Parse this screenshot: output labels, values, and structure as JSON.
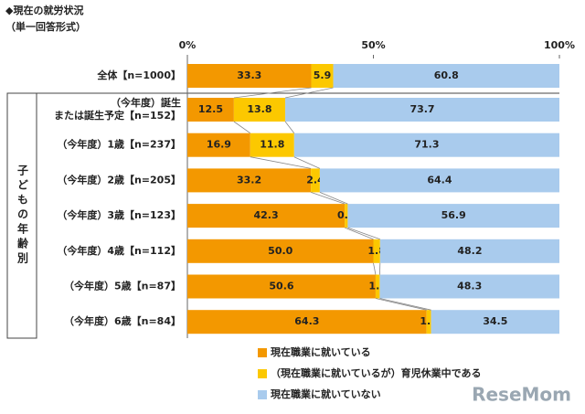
{
  "chart_data": {
    "type": "bar",
    "orientation": "horizontal",
    "stacked": true,
    "title": "◆現在の就労状況",
    "subtitle": "（単一回答形式）",
    "group_label": "子どもの年齢別",
    "categories": [
      "全体【n=1000】",
      "（今年度）誕生\nまたは誕生予定【n=152】",
      "（今年度）1歳【n=237】",
      "（今年度）2歳【n=205】",
      "（今年度）3歳【n=123】",
      "（今年度）4歳【n=112】",
      "（今年度）5歳【n=87】",
      "（今年度）6歳【n=84】"
    ],
    "series": [
      {
        "name": "現在職業に就いている",
        "color": "#f39800",
        "values": [
          33.3,
          12.5,
          16.9,
          33.2,
          42.3,
          50.0,
          50.6,
          64.3
        ],
        "value_labels": [
          "33.3",
          "12.5",
          "16.9",
          "33.2",
          "42.3",
          "50.0",
          "50.6",
          "64.3"
        ]
      },
      {
        "name": "（現在職業に就いているが）育児休業中である",
        "color": "#fcc800",
        "values": [
          5.9,
          13.8,
          11.8,
          2.4,
          0.8,
          1.8,
          1.1,
          1.2
        ]
      },
      {
        "name": "現在職業に就いていない",
        "color": "#a9cbed",
        "values": [
          60.8,
          73.7,
          71.3,
          64.4,
          56.9,
          48.2,
          48.3,
          34.5
        ]
      }
    ],
    "xlim": [
      0,
      100
    ],
    "xticks": [
      {
        "value": 0,
        "label": "0%"
      },
      {
        "value": 50,
        "label": "50%"
      },
      {
        "value": 100,
        "label": "100%"
      }
    ],
    "legend": "bottom"
  },
  "watermark": "ReseMom"
}
